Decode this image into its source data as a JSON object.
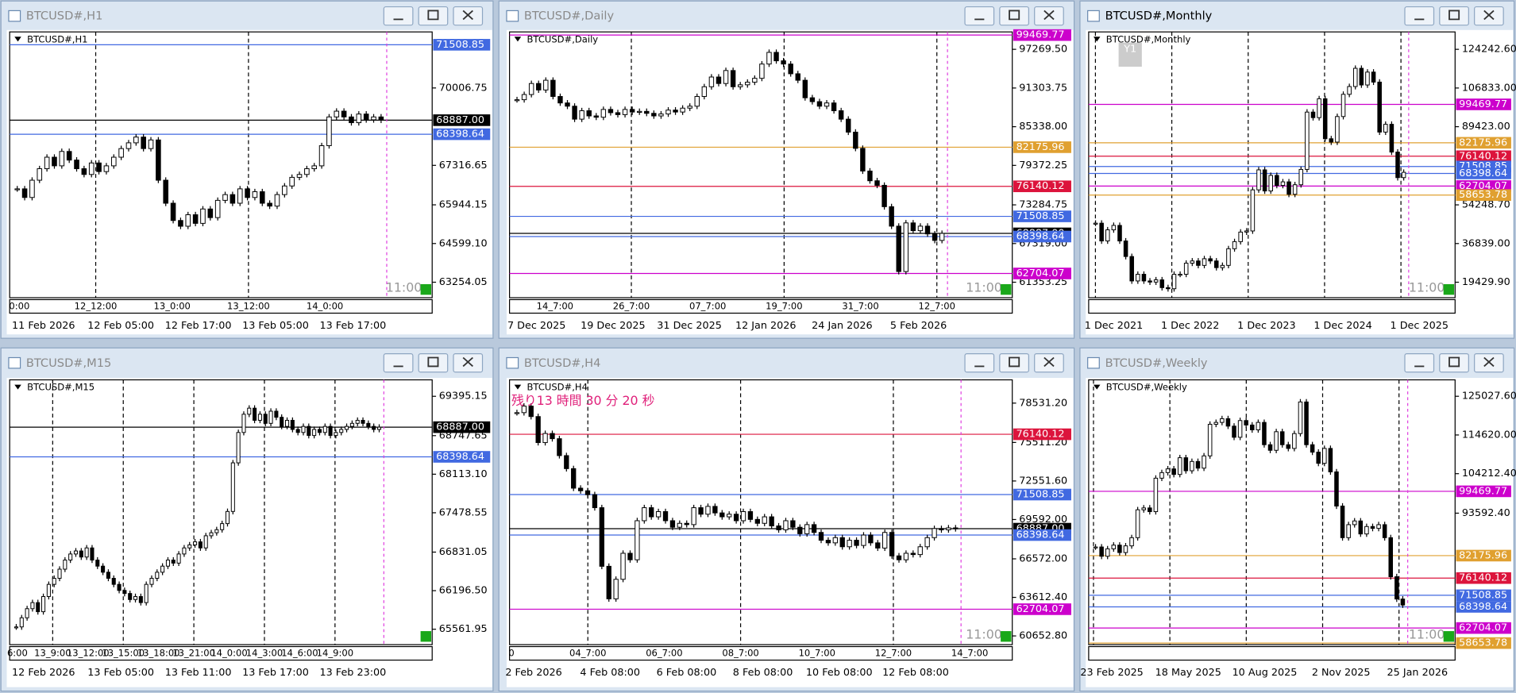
{
  "windows": [
    {
      "title": "BTCUSD#,H1",
      "ylim": [
        62716,
        71955
      ],
      "yticks": [
        70006.75,
        67316.65,
        65944.15,
        {
          "value": 64599.1,
          "label": "64599.10"
        },
        63254.05
      ],
      "levels": [
        {
          "value": 71508.85,
          "color": "#4169e1"
        },
        {
          "value": 68887,
          "label": "68887.00",
          "color": "#000000"
        },
        {
          "value": 68398.64,
          "color": "#4169e1"
        }
      ],
      "time_labels": [
        "0:00",
        "12_12:00",
        "13_0:00",
        "13_12:00",
        "14_0:00"
      ],
      "date_labels": [
        "11 Feb 2026",
        "12 Feb 05:00",
        "12 Feb 17:00",
        "13 Feb 05:00",
        "13 Feb 17:00"
      ],
      "timer": "11:00",
      "closes": [
        66500,
        66200,
        66800,
        67200,
        67600,
        67300,
        67800,
        67500,
        67200,
        67000,
        67400,
        67100,
        67300,
        67600,
        67900,
        68100,
        68300,
        67900,
        68200,
        66800,
        66000,
        65400,
        65200,
        65600,
        65300,
        65800,
        65500,
        66100,
        66300,
        66000,
        66500,
        66200,
        66400,
        66000,
        65900,
        66300,
        66600,
        66900,
        67000,
        67200,
        67300,
        68000,
        69000,
        69200,
        69000,
        68800,
        69100,
        68900,
        69000,
        68887
      ]
    },
    {
      "title": "BTCUSD#,Daily",
      "ylim": [
        58967,
        99954
      ],
      "yticks": [
        {
          "value": 97269.5,
          "label": "97269.50"
        },
        91303.75,
        {
          "value": 85338,
          "label": "85338.00"
        },
        79372.25,
        73284.75,
        {
          "value": 67319,
          "label": "67319.00"
        },
        61353.25
      ],
      "levels": [
        {
          "value": 99469.77,
          "color": "#cc00cc"
        },
        {
          "value": 82175.96,
          "color": "#e0a030"
        },
        {
          "value": 76140.12,
          "color": "#dc143c"
        },
        {
          "value": 71508.85,
          "color": "#4169e1"
        },
        {
          "value": 68887,
          "label": "68887.00",
          "color": "#000000"
        },
        {
          "value": 68398.64,
          "color": "#4169e1"
        },
        {
          "value": 62704.07,
          "color": "#cc00cc"
        }
      ],
      "time_labels": [
        "14_7:00",
        "26_7:00",
        "07_7:00",
        "19_7:00",
        "31_7:00",
        "12_7:00"
      ],
      "date_labels": [
        "7 Dec 2025",
        "19 Dec 2025",
        "31 Dec 2025",
        "12 Jan 2026",
        "24 Jan 2026",
        "5 Feb 2026"
      ],
      "timer": "11:00",
      "closes": [
        89500,
        90300,
        92000,
        91000,
        92500,
        90000,
        89000,
        88500,
        86500,
        87800,
        87000,
        86800,
        88000,
        87500,
        87200,
        88000,
        87600,
        87700,
        87400,
        87000,
        87300,
        87900,
        87600,
        88200,
        88500,
        90000,
        91500,
        93000,
        92000,
        94000,
        91500,
        91800,
        92200,
        92800,
        95000,
        96800,
        95500,
        95000,
        93500,
        92500,
        89800,
        89200,
        88500,
        89000,
        87800,
        86500,
        84500,
        82000,
        78500,
        77000,
        76300,
        73000,
        70000,
        63000,
        70500,
        69300,
        70000,
        68800,
        67800,
        68887
      ]
    },
    {
      "title": "BTCUSD#,Monthly",
      "period_button": "Y1",
      "ylim": [
        12466,
        132077
      ],
      "yticks": [
        {
          "value": 124242.6,
          "label": "124242.60"
        },
        {
          "value": 106833,
          "label": "106833.00"
        },
        {
          "value": 89423,
          "label": "89423.00"
        },
        {
          "value": 54248.7,
          "label": "54248.70"
        },
        {
          "value": 36839,
          "label": "36839.00"
        },
        {
          "value": 19429.9,
          "label": "19429.90"
        }
      ],
      "levels": [
        {
          "value": 99469.77,
          "color": "#cc00cc"
        },
        {
          "value": 82175.96,
          "color": "#e0a030"
        },
        {
          "value": 76140.12,
          "color": "#dc143c"
        },
        {
          "value": 71508.85,
          "color": "#4169e1"
        },
        {
          "value": 68398.64,
          "color": "#4169e1"
        },
        {
          "value": 62704.07,
          "color": "#cc00cc"
        },
        {
          "value": 58653.78,
          "color": "#e0a030"
        }
      ],
      "time_labels": [],
      "date_labels": [
        "1 Dec 2021",
        "1 Dec 2022",
        "1 Dec 2023",
        "1 Dec 2024",
        "1 Dec 2025"
      ],
      "timer": "11:00",
      "closes": [
        46000,
        38000,
        43000,
        45000,
        38000,
        31000,
        20000,
        23000,
        20000,
        19500,
        20500,
        17000,
        16500,
        23000,
        23000,
        28000,
        29000,
        27000,
        30000,
        29000,
        26000,
        27000,
        34500,
        37700,
        42000,
        42500,
        61000,
        70000,
        60500,
        67500,
        63000,
        64600,
        59000,
        63300,
        70200,
        96000,
        93500,
        102000,
        84000,
        82500,
        94000,
        104000,
        107500,
        115700,
        108200,
        114000,
        109500,
        87000,
        90500,
        78000,
        66500,
        68887
      ]
    },
    {
      "title": "BTCUSD#,M15",
      "ylim": [
        65308,
        69666
      ],
      "yticks": [
        69395.15,
        68747.65,
        {
          "value": 68113.1,
          "label": "68113.10"
        },
        67478.55,
        66831.05,
        {
          "value": 66196.5,
          "label": "66196.50"
        },
        65561.95
      ],
      "levels": [
        {
          "value": 68887,
          "label": "68887.00",
          "color": "#000000"
        },
        {
          "value": 68398.64,
          "color": "#4169e1"
        }
      ],
      "time_labels": [
        "6:00",
        "13_9:00",
        "13_12:00",
        "13_15:00",
        "13_18:00",
        "13_21:00",
        "14_0:00",
        "14_3:00",
        "14_6:00",
        "14_9:00"
      ],
      "date_labels": [
        "12 Feb 2026",
        "13 Feb 05:00",
        "13 Feb 11:00",
        "13 Feb 17:00",
        "13 Feb 23:00"
      ],
      "closes": [
        65600,
        65750,
        65900,
        66000,
        65850,
        66100,
        66300,
        66400,
        66550,
        66700,
        66800,
        66850,
        66750,
        66900,
        66700,
        66600,
        66500,
        66400,
        66300,
        66200,
        66150,
        66050,
        66100,
        66000,
        66300,
        66400,
        66500,
        66600,
        66700,
        66650,
        66800,
        66900,
        66950,
        67000,
        66900,
        67100,
        67150,
        67200,
        67300,
        67500,
        68300,
        68800,
        69100,
        69200,
        69000,
        69100,
        68950,
        69150,
        69050,
        68900,
        69000,
        68850,
        68800,
        68900,
        68750,
        68850,
        68800,
        68900,
        68750,
        68800,
        68850,
        68900,
        68950,
        69000,
        68950,
        68900,
        68850,
        68887
      ]
    },
    {
      "title": "BTCUSD#,H4",
      "countdown": "残り13 時間 30 分 20 秒",
      "ylim": [
        59982,
        80319
      ],
      "yticks": [
        {
          "value": 78531.2,
          "label": "78531.20"
        },
        {
          "value": 75511.2,
          "label": "75511.20"
        },
        {
          "value": 72551.6,
          "label": "72551.60"
        },
        {
          "value": 69592,
          "label": "69592.00"
        },
        {
          "value": 66572,
          "label": "66572.00"
        },
        {
          "value": 63612.4,
          "label": "63612.40"
        },
        {
          "value": 60652.8,
          "label": "60652.80"
        }
      ],
      "levels": [
        {
          "value": 76140.12,
          "color": "#dc143c"
        },
        {
          "value": 71508.85,
          "color": "#4169e1"
        },
        {
          "value": 68887,
          "label": "68887.00",
          "color": "#000000"
        },
        {
          "value": 68398.64,
          "color": "#4169e1"
        },
        {
          "value": 62704.07,
          "color": "#cc00cc"
        }
      ],
      "time_labels": [
        "0",
        "04_7:00",
        "06_7:00",
        "08_7:00",
        "10_7:00",
        "12_7:00",
        "14_7:00"
      ],
      "date_labels": [
        "2 Feb 2026",
        "4 Feb 08:00",
        "6 Feb 08:00",
        "8 Feb 08:00",
        "10 Feb 08:00",
        "12 Feb 08:00"
      ],
      "timer": "11:00",
      "closes": [
        77800,
        78300,
        77500,
        75500,
        76200,
        75800,
        74500,
        73500,
        72000,
        71800,
        71500,
        70500,
        66000,
        63500,
        65000,
        67000,
        66500,
        69500,
        70500,
        69800,
        70200,
        69500,
        69000,
        69300,
        69200,
        70500,
        70000,
        70600,
        70100,
        69800,
        70000,
        69500,
        70200,
        69600,
        69300,
        69800,
        69100,
        68800,
        69500,
        69000,
        68500,
        69200,
        68600,
        68000,
        67800,
        68200,
        67500,
        68000,
        67600,
        68400,
        67800,
        67400,
        68600,
        66800,
        66500,
        67000,
        66900,
        67500,
        68200,
        68900,
        68800,
        68950,
        68887
      ]
    },
    {
      "title": "BTCUSD#,Weekly",
      "ylim": [
        58232,
        129447
      ],
      "yticks": [
        {
          "value": 125027.6,
          "label": "125027.60"
        },
        {
          "value": 114620,
          "label": "114620.00"
        },
        {
          "value": 104212.4,
          "label": "104212.40"
        },
        {
          "value": 93592.4,
          "label": "93592.40"
        }
      ],
      "levels": [
        {
          "value": 99469.77,
          "color": "#cc00cc"
        },
        {
          "value": 82175.96,
          "color": "#e0a030"
        },
        {
          "value": 76140.12,
          "color": "#dc143c"
        },
        {
          "value": 71508.85,
          "color": "#4169e1"
        },
        {
          "value": 68398.64,
          "color": "#4169e1"
        },
        {
          "value": 62704.07,
          "color": "#cc00cc"
        },
        {
          "value": 58653.78,
          "color": "#e0a030"
        }
      ],
      "time_labels": [],
      "date_labels": [
        "23 Feb 2025",
        "18 May 2025",
        "10 Aug 2025",
        "2 Nov 2025",
        "25 Jan 2026"
      ],
      "timer": "11:00",
      "closes": [
        84500,
        82000,
        84000,
        85000,
        83000,
        84800,
        87000,
        94500,
        95000,
        94000,
        103000,
        104500,
        105500,
        104000,
        108500,
        105000,
        107500,
        105700,
        109000,
        117500,
        118000,
        119000,
        117000,
        114000,
        118500,
        117300,
        116000,
        118000,
        112000,
        110500,
        115500,
        112000,
        111000,
        115000,
        123500,
        112000,
        110000,
        107000,
        111000,
        104700,
        95500,
        87000,
        90500,
        91500,
        88000,
        90000,
        89500,
        90500,
        87000,
        76500,
        70500,
        68887
      ]
    }
  ]
}
